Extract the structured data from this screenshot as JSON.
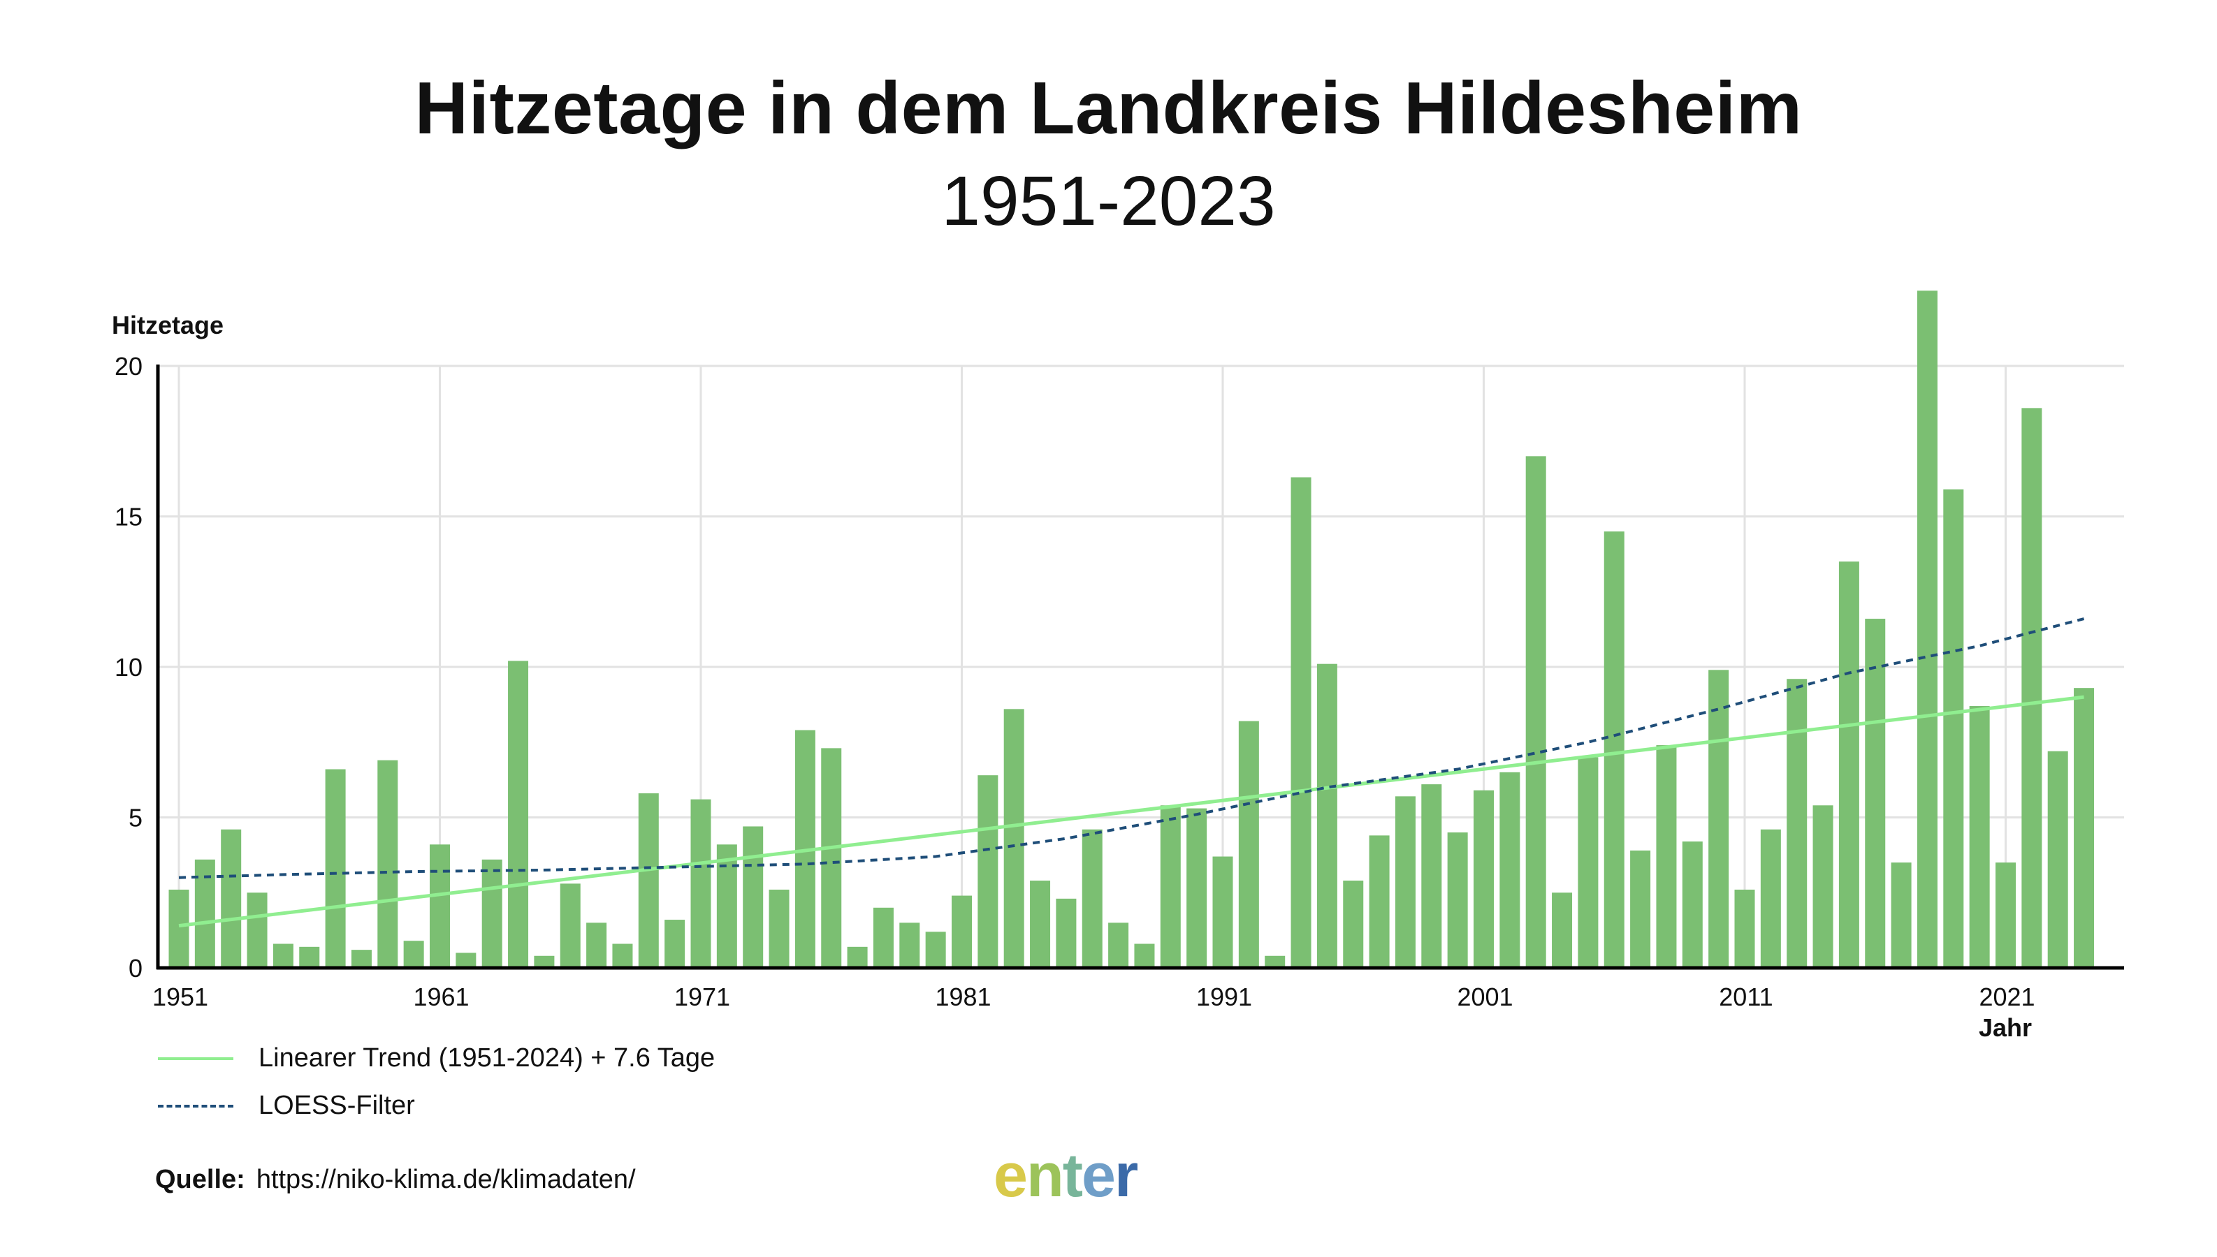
{
  "title": "Hitzetage in dem Landkreis Hildesheim",
  "subtitle": "1951-2023",
  "legend": {
    "trend": "Linearer Trend (1951-2024) + 7.6 Tage",
    "loess": "LOESS-Filter"
  },
  "source": {
    "label": "Quelle:",
    "url": "https://niko-klima.de/klimadaten/"
  },
  "logo": {
    "text": "enter"
  },
  "colors": {
    "bar": "#7bbf72",
    "trend": "#90ee90",
    "loess": "#1f4e79",
    "grid": "#e2e2e2",
    "axis": "#000000"
  },
  "chart_data": {
    "type": "bar",
    "ylabel": "Hitzetage",
    "xlabel": "Jahr",
    "ylim": [
      0,
      20
    ],
    "yticks": [
      0,
      5,
      10,
      15,
      20
    ],
    "xticks": [
      1951,
      1961,
      1971,
      1981,
      1991,
      2001,
      2011,
      2021
    ],
    "grid": true,
    "x": [
      1951,
      1952,
      1953,
      1954,
      1955,
      1956,
      1957,
      1958,
      1959,
      1960,
      1961,
      1962,
      1963,
      1964,
      1965,
      1966,
      1967,
      1968,
      1969,
      1970,
      1971,
      1972,
      1973,
      1974,
      1975,
      1976,
      1977,
      1978,
      1979,
      1980,
      1981,
      1982,
      1983,
      1984,
      1985,
      1986,
      1987,
      1988,
      1989,
      1990,
      1991,
      1992,
      1993,
      1994,
      1995,
      1996,
      1997,
      1998,
      1999,
      2000,
      2001,
      2002,
      2003,
      2004,
      2005,
      2006,
      2007,
      2008,
      2009,
      2010,
      2011,
      2012,
      2013,
      2014,
      2015,
      2016,
      2017,
      2018,
      2019,
      2020,
      2021,
      2022,
      2023,
      2024
    ],
    "values": [
      2.6,
      3.6,
      4.6,
      2.5,
      0.8,
      0.7,
      6.6,
      0.6,
      6.9,
      0.9,
      4.1,
      0.5,
      3.6,
      10.2,
      0.4,
      2.8,
      1.5,
      0.8,
      5.8,
      1.6,
      5.6,
      4.1,
      4.7,
      2.6,
      7.9,
      7.3,
      0.7,
      2.0,
      1.5,
      1.2,
      2.4,
      6.4,
      8.6,
      2.9,
      2.3,
      4.6,
      1.5,
      0.8,
      5.4,
      5.3,
      3.7,
      8.2,
      0.4,
      16.3,
      10.1,
      2.9,
      4.4,
      5.7,
      6.1,
      4.5,
      5.9,
      6.5,
      17.0,
      2.5,
      7.0,
      14.5,
      3.9,
      7.4,
      4.2,
      9.9,
      2.6,
      4.6,
      9.6,
      5.4,
      13.5,
      11.6,
      3.5,
      22.5,
      15.9,
      8.7,
      3.5,
      18.6,
      7.2,
      9.3
    ],
    "series": [
      {
        "name": "Linearer Trend (1951-2024) + 7.6 Tage",
        "type": "line",
        "x": [
          1951,
          2024
        ],
        "values": [
          1.4,
          9.0
        ]
      },
      {
        "name": "LOESS-Filter",
        "type": "line",
        "style": "dashed",
        "x": [
          1951,
          1955,
          1960,
          1965,
          1970,
          1975,
          1980,
          1985,
          1990,
          1995,
          2000,
          2005,
          2010,
          2015,
          2020,
          2024
        ],
        "values": [
          3.0,
          3.1,
          3.2,
          3.25,
          3.35,
          3.45,
          3.7,
          4.3,
          5.1,
          6.0,
          6.6,
          7.5,
          8.6,
          9.8,
          10.7,
          11.6
        ]
      }
    ]
  }
}
